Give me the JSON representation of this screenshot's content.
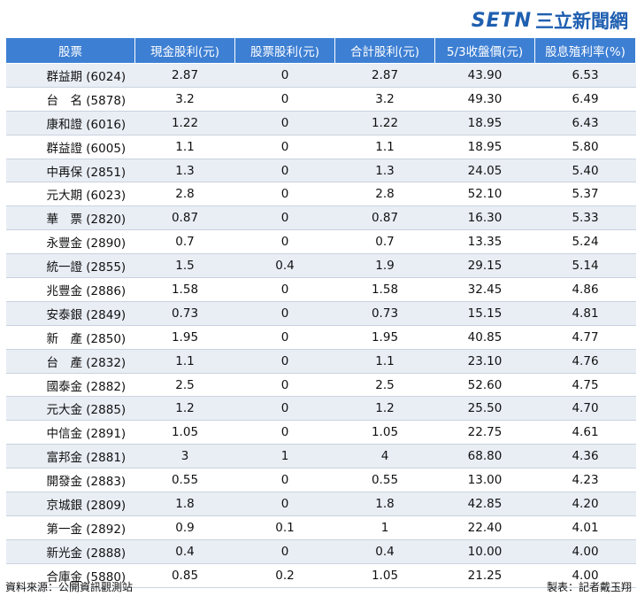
{
  "brand": {
    "setn": "SETN",
    "cn": "三立新聞網"
  },
  "table": {
    "headers": [
      "股票",
      "現金股利(元)",
      "股票股利(元)",
      "合計股利(元)",
      "5/3收盤價(元)",
      "股息殖利率(%)"
    ],
    "rows": [
      [
        "群益期 (6024)",
        "2.87",
        "0",
        "2.87",
        "43.90",
        "6.53"
      ],
      [
        "台　名 (5878)",
        "3.2",
        "0",
        "3.2",
        "49.30",
        "6.49"
      ],
      [
        "康和證 (6016)",
        "1.22",
        "0",
        "1.22",
        "18.95",
        "6.43"
      ],
      [
        "群益證 (6005)",
        "1.1",
        "0",
        "1.1",
        "18.95",
        "5.80"
      ],
      [
        "中再保 (2851)",
        "1.3",
        "0",
        "1.3",
        "24.05",
        "5.40"
      ],
      [
        "元大期 (6023)",
        "2.8",
        "0",
        "2.8",
        "52.10",
        "5.37"
      ],
      [
        "華　票 (2820)",
        "0.87",
        "0",
        "0.87",
        "16.30",
        "5.33"
      ],
      [
        "永豐金 (2890)",
        "0.7",
        "0",
        "0.7",
        "13.35",
        "5.24"
      ],
      [
        "統一證 (2855)",
        "1.5",
        "0.4",
        "1.9",
        "29.15",
        "5.14"
      ],
      [
        "兆豐金 (2886)",
        "1.58",
        "0",
        "1.58",
        "32.45",
        "4.86"
      ],
      [
        "安泰銀 (2849)",
        "0.73",
        "0",
        "0.73",
        "15.15",
        "4.81"
      ],
      [
        "新　產 (2850)",
        "1.95",
        "0",
        "1.95",
        "40.85",
        "4.77"
      ],
      [
        "台　產 (2832)",
        "1.1",
        "0",
        "1.1",
        "23.10",
        "4.76"
      ],
      [
        "國泰金 (2882)",
        "2.5",
        "0",
        "2.5",
        "52.60",
        "4.75"
      ],
      [
        "元大金 (2885)",
        "1.2",
        "0",
        "1.2",
        "25.50",
        "4.70"
      ],
      [
        "中信金 (2891)",
        "1.05",
        "0",
        "1.05",
        "22.75",
        "4.61"
      ],
      [
        "富邦金 (2881)",
        "3",
        "1",
        "4",
        "68.80",
        "4.36"
      ],
      [
        "開發金 (2883)",
        "0.55",
        "0",
        "0.55",
        "13.00",
        "4.23"
      ],
      [
        "京城銀 (2809)",
        "1.8",
        "0",
        "1.8",
        "42.85",
        "4.20"
      ],
      [
        "第一金 (2892)",
        "0.9",
        "0.1",
        "1",
        "22.40",
        "4.01"
      ],
      [
        "新光金 (2888)",
        "0.4",
        "0",
        "0.4",
        "10.00",
        "4.00"
      ],
      [
        "合庫金 (5880)",
        "0.85",
        "0.2",
        "1.05",
        "21.25",
        "4.00"
      ]
    ]
  },
  "footer": {
    "source": "資料來源：公開資訊觀測站",
    "credit": "製表：記者戴玉翔"
  },
  "colors": {
    "header_bg": "#3d7fd3",
    "row_alt": "#e9eef5",
    "brand": "#1f5fb0"
  }
}
